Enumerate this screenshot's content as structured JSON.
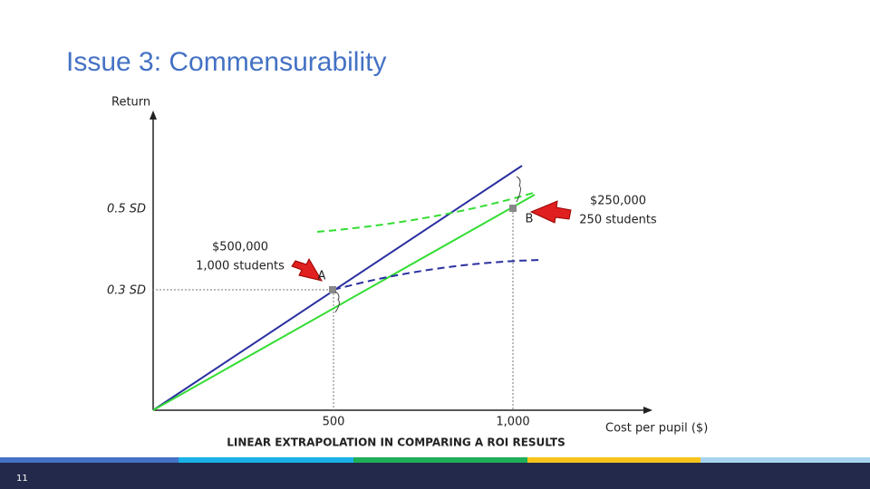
{
  "title": "Issue 3: Commensurability",
  "y_axis_title": "Return",
  "x_axis_title": "Cost per pupil ($)",
  "y_ticks": [
    "0.5 SD",
    "0.3 SD"
  ],
  "x_ticks": [
    "500",
    "1,000"
  ],
  "annotations": {
    "a": {
      "cost": "$500,000",
      "students": "1,000 students",
      "label": "A"
    },
    "b": {
      "cost": "$250,000",
      "students": "250 students",
      "label": "B"
    }
  },
  "caption": "LINEAR EXTRAPOLATION IN COMPARING A ROI RESULTS",
  "slide_number": "11"
}
